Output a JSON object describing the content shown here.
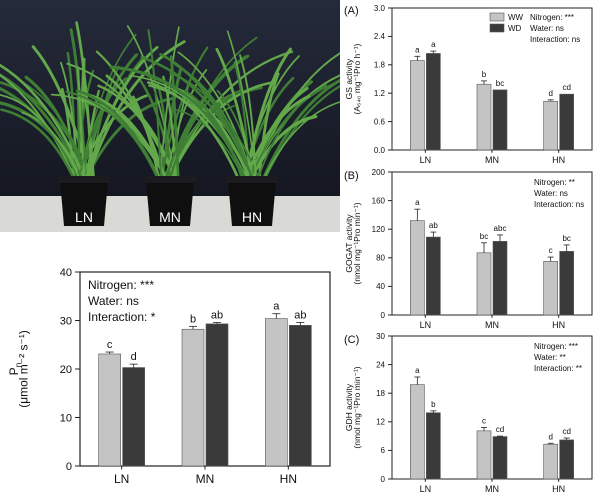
{
  "photo": {
    "pot_labels": [
      "LN",
      "MN",
      "HN"
    ],
    "colors": {
      "backdrop": "#1b1f2c",
      "floor": "#d9d9d6",
      "pot": "#0f0f10",
      "leaf": "#63a84a",
      "leaf_dark": "#3f7f35"
    }
  },
  "colors": {
    "WW": "#c4c4c4",
    "WD": "#3a3a3a"
  },
  "chart_data": [
    {
      "id": "pn",
      "type": "bar",
      "panel_label": "",
      "categories": [
        "LN",
        "MN",
        "HN"
      ],
      "ylabel_main": "P",
      "ylabel_sub": "n",
      "ylabel_unit": "(μmol m⁻² s⁻¹)",
      "ylim": [
        0,
        40
      ],
      "yticks": [
        0,
        10,
        20,
        30,
        40
      ],
      "series": [
        {
          "key": "WW",
          "values": [
            23.1,
            28.2,
            30.4
          ],
          "errors": [
            0.4,
            0.6,
            1.0
          ],
          "letters": [
            "c",
            "b",
            "a"
          ]
        },
        {
          "key": "WD",
          "values": [
            20.3,
            29.3,
            29.0
          ],
          "errors": [
            0.7,
            0.3,
            0.6
          ],
          "letters": [
            "d",
            "ab",
            "ab"
          ]
        }
      ],
      "legend": [],
      "stats": [
        "Nitrogen: ***",
        "Water: ns",
        "Interaction: *"
      ]
    },
    {
      "id": "gs",
      "type": "bar",
      "panel_label": "(A)",
      "categories": [
        "LN",
        "MN",
        "HN"
      ],
      "ylabel_main": "GS activity",
      "ylabel_unit": "(A₅₄₀ mg⁻¹Pro h⁻¹)",
      "ylim": [
        0,
        3.0
      ],
      "yticks": [
        0.0,
        0.6,
        1.2,
        1.8,
        2.4,
        3.0
      ],
      "ytick_labels": [
        "0.0",
        "0.6",
        "1.2",
        "1.8",
        "2.4",
        "3.0"
      ],
      "series": [
        {
          "key": "WW",
          "values": [
            1.89,
            1.39,
            1.03
          ],
          "errors": [
            0.09,
            0.07,
            0.03
          ],
          "letters": [
            "a",
            "b",
            "d"
          ]
        },
        {
          "key": "WD",
          "values": [
            2.04,
            1.27,
            1.18
          ],
          "errors": [
            0.05,
            0.0,
            0.0
          ],
          "letters": [
            "a",
            "bc",
            "cd"
          ]
        }
      ],
      "legend": [
        "WW",
        "WD"
      ],
      "stats": [
        "Nitrogen: ***",
        "Water: ns",
        "Interaction: ns"
      ]
    },
    {
      "id": "gogat",
      "type": "bar",
      "panel_label": "(B)",
      "categories": [
        "LN",
        "MN",
        "HN"
      ],
      "ylabel_main": "GOGAT activity",
      "ylabel_unit": "(nmol mg⁻¹Pro min⁻¹)",
      "ylim": [
        0,
        200
      ],
      "yticks": [
        0,
        40,
        80,
        120,
        160,
        200
      ],
      "series": [
        {
          "key": "WW",
          "values": [
            132,
            87,
            75
          ],
          "errors": [
            16,
            14,
            6
          ],
          "letters": [
            "a",
            "bc",
            "c"
          ]
        },
        {
          "key": "WD",
          "values": [
            109,
            103,
            89
          ],
          "errors": [
            7,
            9,
            9
          ],
          "letters": [
            "ab",
            "abc",
            "bc"
          ]
        }
      ],
      "legend": [],
      "stats": [
        "Nitrogen: **",
        "Water: ns",
        "Interaction: ns"
      ]
    },
    {
      "id": "gdh",
      "type": "bar",
      "panel_label": "(C)",
      "categories": [
        "LN",
        "MN",
        "HN"
      ],
      "ylabel_main": "GDH activity",
      "ylabel_unit": "(nmol mg⁻¹Pro min⁻¹)",
      "ylim": [
        0,
        30
      ],
      "yticks": [
        0,
        6,
        12,
        18,
        24,
        30
      ],
      "series": [
        {
          "key": "WW",
          "values": [
            19.8,
            10.1,
            7.3
          ],
          "errors": [
            1.6,
            0.7,
            0.2
          ],
          "letters": [
            "a",
            "c",
            "d"
          ]
        },
        {
          "key": "WD",
          "values": [
            13.9,
            8.9,
            8.2
          ],
          "errors": [
            0.4,
            0.1,
            0.4
          ],
          "letters": [
            "b",
            "cd",
            "cd"
          ]
        }
      ],
      "legend": [],
      "stats": [
        "Nitrogen: ***",
        "Water: **",
        "Interaction: **"
      ]
    }
  ]
}
